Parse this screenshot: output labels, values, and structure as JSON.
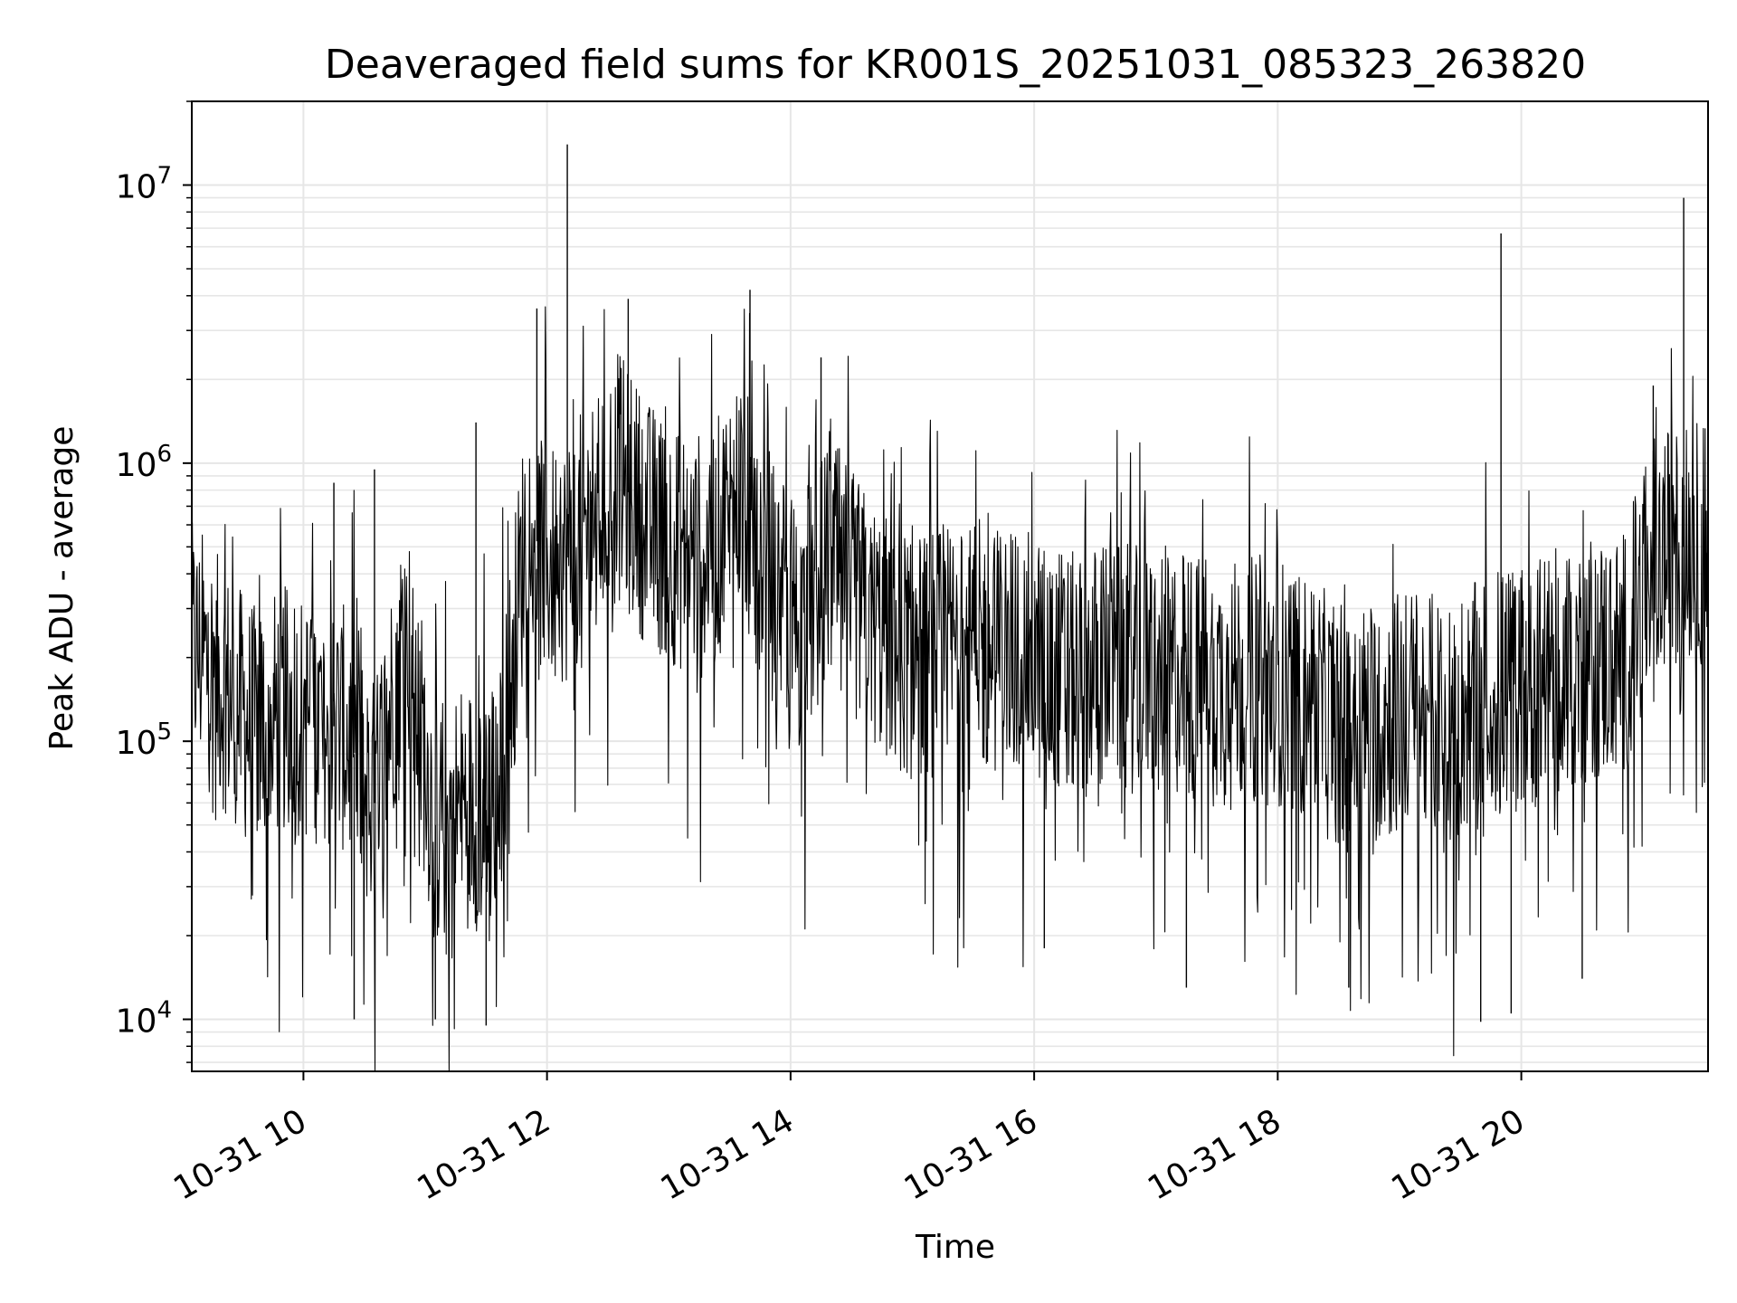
{
  "chart_data": {
    "type": "line",
    "title": "Deaveraged field sums for KR001S_20251031_085323_263820",
    "xlabel": "Time",
    "ylabel": "Peak ADU - average",
    "yscale": "log",
    "ylim": [
      6500,
      20000000
    ],
    "xlim": [
      "2025-10-31 09:05",
      "2025-10-31 21:32"
    ],
    "x_ticks": [
      {
        "time": "2025-10-31 10:00",
        "label": "10-31 10"
      },
      {
        "time": "2025-10-31 12:00",
        "label": "10-31 12"
      },
      {
        "time": "2025-10-31 14:00",
        "label": "10-31 14"
      },
      {
        "time": "2025-10-31 16:00",
        "label": "10-31 16"
      },
      {
        "time": "2025-10-31 18:00",
        "label": "10-31 18"
      },
      {
        "time": "2025-10-31 20:00",
        "label": "10-31 20"
      }
    ],
    "y_ticks": [
      {
        "value": 10000,
        "base": "10",
        "exp": "4"
      },
      {
        "value": 100000,
        "base": "10",
        "exp": "5"
      },
      {
        "value": 1000000,
        "base": "10",
        "exp": "6"
      },
      {
        "value": 10000000,
        "base": "10",
        "exp": "7"
      }
    ],
    "grid": true,
    "line_color": "#000000",
    "grid_color": "#e6e6e6",
    "series": [
      {
        "x": [
          "2025-10-31 09:05",
          "2025-10-31 09:20",
          "2025-10-31 09:35",
          "2025-10-31 09:50",
          "2025-10-31 10:05",
          "2025-10-31 10:20",
          "2025-10-31 10:35",
          "2025-10-31 10:50",
          "2025-10-31 11:05",
          "2025-10-31 11:20",
          "2025-10-31 11:35",
          "2025-10-31 11:50",
          "2025-10-31 12:05",
          "2025-10-31 12:20",
          "2025-10-31 12:35",
          "2025-10-31 12:50",
          "2025-10-31 13:05",
          "2025-10-31 13:20",
          "2025-10-31 13:35",
          "2025-10-31 13:50",
          "2025-10-31 14:05",
          "2025-10-31 14:20",
          "2025-10-31 14:35",
          "2025-10-31 14:50",
          "2025-10-31 15:05",
          "2025-10-31 15:20",
          "2025-10-31 15:35",
          "2025-10-31 15:50",
          "2025-10-31 16:05",
          "2025-10-31 16:20",
          "2025-10-31 16:35",
          "2025-10-31 16:50",
          "2025-10-31 17:05",
          "2025-10-31 17:20",
          "2025-10-31 17:35",
          "2025-10-31 17:50",
          "2025-10-31 18:05",
          "2025-10-31 18:20",
          "2025-10-31 18:35",
          "2025-10-31 18:50",
          "2025-10-31 19:05",
          "2025-10-31 19:20",
          "2025-10-31 19:35",
          "2025-10-31 19:50",
          "2025-10-31 20:05",
          "2025-10-31 20:20",
          "2025-10-31 20:35",
          "2025-10-31 20:50",
          "2025-10-31 21:05",
          "2025-10-31 21:20",
          "2025-10-31 21:32"
        ],
        "y": [
          220000,
          160000,
          110000,
          130000,
          120000,
          110000,
          60000,
          260000,
          50000,
          60000,
          55000,
          600000,
          400000,
          600000,
          900000,
          600000,
          500000,
          450000,
          800000,
          400000,
          250000,
          450000,
          300000,
          220000,
          200000,
          220000,
          210000,
          220000,
          190000,
          170000,
          190000,
          180000,
          180000,
          170000,
          160000,
          170000,
          160000,
          130000,
          110000,
          120000,
          130000,
          120000,
          130000,
          150000,
          160000,
          180000,
          200000,
          200000,
          450000,
          500000,
          520000
        ],
        "spikes": [
          {
            "time": "2025-10-31 12:10",
            "y": 14000000
          },
          {
            "time": "2025-10-31 13:40",
            "y": 4200000
          },
          {
            "time": "2025-10-31 12:40",
            "y": 3900000
          },
          {
            "time": "2025-10-31 11:55",
            "y": 3600000
          },
          {
            "time": "2025-10-31 14:15",
            "y": 2400000
          },
          {
            "time": "2025-10-31 19:50",
            "y": 6700000
          },
          {
            "time": "2025-10-31 21:20",
            "y": 9000000
          },
          {
            "time": "2025-10-31 21:05",
            "y": 1900000
          },
          {
            "time": "2025-10-31 11:25",
            "y": 1400000
          },
          {
            "time": "2025-10-31 10:35",
            "y": 950000
          },
          {
            "time": "2025-10-31 10:15",
            "y": 850000
          }
        ],
        "dips": [
          {
            "time": "2025-10-31 10:25",
            "y": 10000
          },
          {
            "time": "2025-10-31 11:30",
            "y": 9500
          },
          {
            "time": "2025-10-31 11:05",
            "y": 10000
          },
          {
            "time": "2025-10-31 19:40",
            "y": 9800
          },
          {
            "time": "2025-10-31 19:55",
            "y": 10500
          },
          {
            "time": "2025-10-31 17:15",
            "y": 13000
          },
          {
            "time": "2025-10-31 18:35",
            "y": 13000
          },
          {
            "time": "2025-10-31 20:30",
            "y": 14000
          },
          {
            "time": "2025-10-31 16:05",
            "y": 18000
          }
        ]
      }
    ]
  }
}
